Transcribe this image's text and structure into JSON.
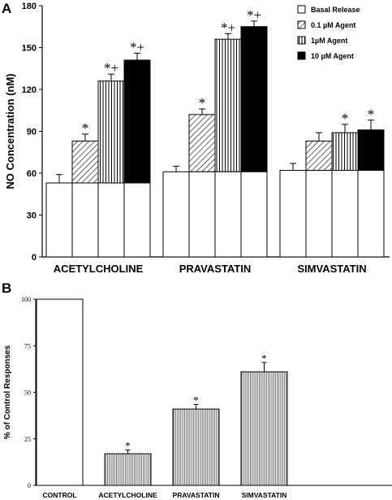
{
  "chart_data": [
    {
      "panel": "A",
      "type": "bar",
      "ylabel": "NO Concentration (nM)",
      "ylim": [
        0,
        180
      ],
      "yticks": [
        0,
        30,
        60,
        90,
        120,
        150,
        180
      ],
      "categories": [
        "ACETYLCHOLINE",
        "PRAVASTATIN",
        "SIMVASTATIN"
      ],
      "legend_position": "top-right",
      "series": [
        {
          "name": "Basal Release",
          "pattern": "open",
          "values": [
            53,
            61,
            62
          ],
          "errors": [
            6,
            4,
            5
          ]
        },
        {
          "name": "0.1 µM Agent",
          "pattern": "diagonal",
          "values": [
            83,
            102,
            83
          ],
          "errors": [
            5,
            4,
            6
          ]
        },
        {
          "name": "1µM Agent",
          "pattern": "vertical",
          "values": [
            126,
            156,
            89
          ],
          "errors": [
            5,
            4,
            6
          ]
        },
        {
          "name": "10 µM Agent",
          "pattern": "solid",
          "values": [
            141,
            165,
            91
          ],
          "errors": [
            5,
            4,
            7
          ]
        }
      ],
      "basal_segment_values": [
        53,
        61,
        62
      ],
      "annotations": [
        {
          "category": 0,
          "series": 1,
          "text": "*"
        },
        {
          "category": 0,
          "series": 2,
          "text": "*+"
        },
        {
          "category": 0,
          "series": 3,
          "text": "*+"
        },
        {
          "category": 1,
          "series": 1,
          "text": "*"
        },
        {
          "category": 1,
          "series": 2,
          "text": "*+"
        },
        {
          "category": 1,
          "series": 3,
          "text": "*+"
        },
        {
          "category": 2,
          "series": 2,
          "text": "*"
        },
        {
          "category": 2,
          "series": 3,
          "text": "*"
        }
      ]
    },
    {
      "panel": "B",
      "type": "bar",
      "ylabel": "% of Control Responses",
      "ylim": [
        0,
        100
      ],
      "yticks": [
        0,
        25,
        50,
        75,
        100
      ],
      "categories": [
        "CONTROL",
        "ACETYLCHOLINE",
        "PRAVASTATIN",
        "SIMVASTATIN"
      ],
      "values": [
        100,
        17,
        41,
        61
      ],
      "errors": [
        0,
        2,
        2.5,
        5
      ],
      "patterns": [
        "open",
        "vertical",
        "vertical",
        "vertical"
      ],
      "annotations": [
        "",
        "*",
        "*",
        "*"
      ]
    }
  ]
}
